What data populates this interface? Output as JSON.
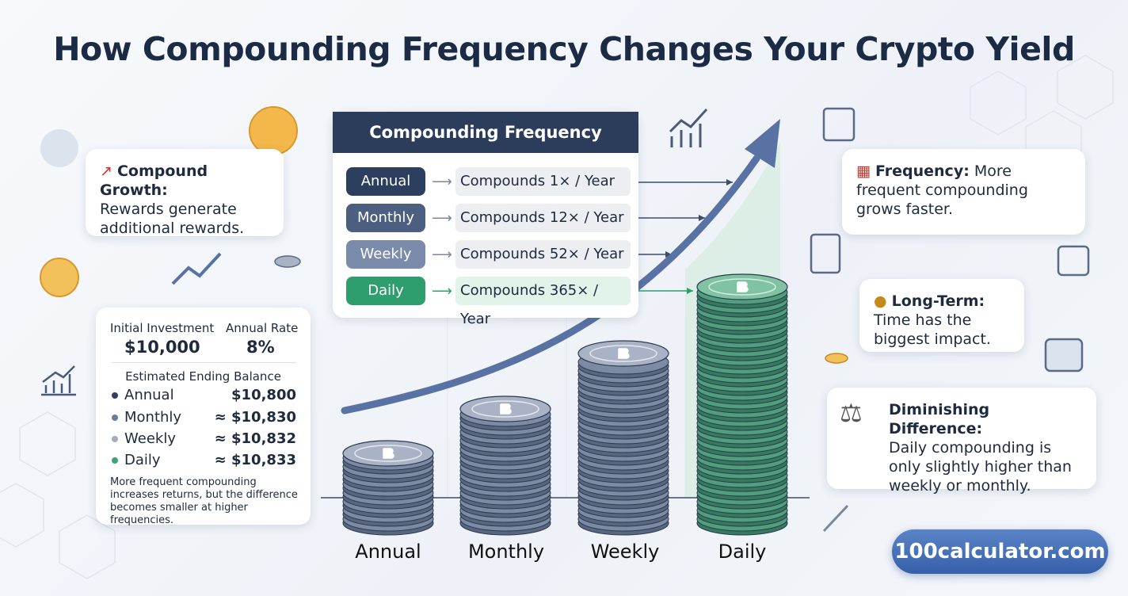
{
  "title": "How Compounding Frequency Changes Your Crypto Yield",
  "frequency_panel": {
    "title": "Compounding Frequency",
    "rows": [
      {
        "label": "Annual",
        "text": "Compounds 1× / Year"
      },
      {
        "label": "Monthly",
        "text": "Compounds 12× / Year"
      },
      {
        "label": "Weekly",
        "text": "Compounds 52× / Year"
      },
      {
        "label": "Daily",
        "text": "Compounds 365× / Year"
      }
    ]
  },
  "callouts": [
    {
      "heading": "Compound Growth:",
      "text": "Rewards generate additional rewards."
    },
    {
      "heading": "Frequency:",
      "text": "More frequent compounding grows faster."
    },
    {
      "heading": "Long-Term:",
      "text": "Time has the biggest impact."
    },
    {
      "heading": "Diminishing Difference:",
      "text": "Daily compounding is only slightly higher than weekly or monthly."
    }
  ],
  "summary": {
    "investment_label": "Initial Investment",
    "investment": "$10,000",
    "rate_label": "Annual Rate",
    "rate": "8%",
    "balance_label": "Estimated Ending Balance",
    "rows": [
      {
        "name": "Annual",
        "value": "$10,800"
      },
      {
        "name": "Monthly",
        "value": "≈ $10,830"
      },
      {
        "name": "Weekly",
        "value": "≈ $10,832"
      },
      {
        "name": "Daily",
        "value": "≈ $10,833"
      }
    ],
    "note": "More frequent compounding increases returns, but the difference becomes smaller at higher frequencies."
  },
  "stack_labels": [
    "Annual",
    "Monthly",
    "Weekly",
    "Daily"
  ],
  "brand": "100calculator.com"
}
